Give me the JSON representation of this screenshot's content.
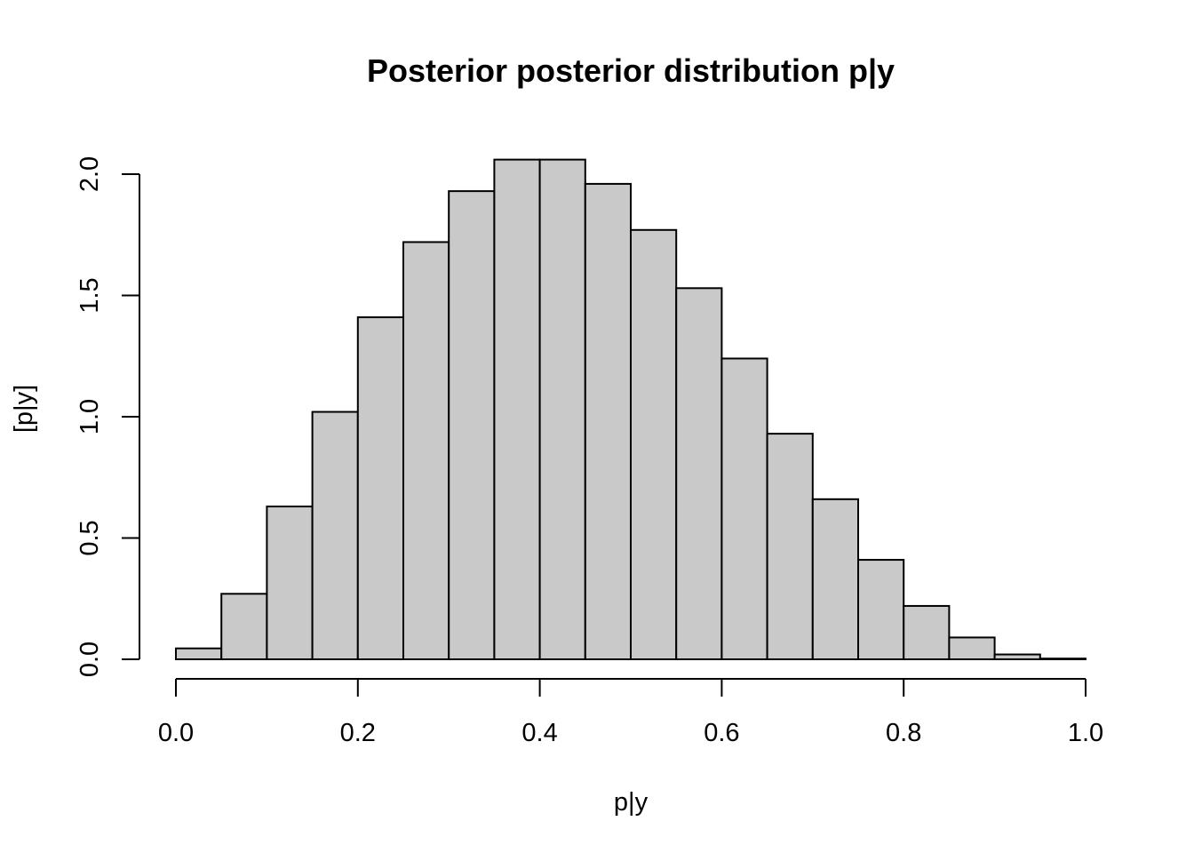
{
  "chart_data": {
    "type": "bar",
    "title": "Posterior posterior distribution p|y",
    "xlabel": "p|y",
    "ylabel": "[p|y]",
    "xlim": [
      0,
      1
    ],
    "ylim": [
      0,
      2.0
    ],
    "x_ticks": [
      "0.0",
      "0.2",
      "0.4",
      "0.6",
      "0.8",
      "1.0"
    ],
    "y_ticks": [
      "0.0",
      "0.5",
      "1.0",
      "1.5",
      "2.0"
    ],
    "grid": false,
    "bar_color": "#c9c9c9",
    "bins": [
      {
        "x0": 0.0,
        "x1": 0.05,
        "density": 0.045
      },
      {
        "x0": 0.05,
        "x1": 0.1,
        "density": 0.27
      },
      {
        "x0": 0.1,
        "x1": 0.15,
        "density": 0.63
      },
      {
        "x0": 0.15,
        "x1": 0.2,
        "density": 1.02
      },
      {
        "x0": 0.2,
        "x1": 0.25,
        "density": 1.41
      },
      {
        "x0": 0.25,
        "x1": 0.3,
        "density": 1.72
      },
      {
        "x0": 0.3,
        "x1": 0.35,
        "density": 1.93
      },
      {
        "x0": 0.35,
        "x1": 0.4,
        "density": 2.06
      },
      {
        "x0": 0.4,
        "x1": 0.45,
        "density": 2.06
      },
      {
        "x0": 0.45,
        "x1": 0.5,
        "density": 1.96
      },
      {
        "x0": 0.5,
        "x1": 0.55,
        "density": 1.77
      },
      {
        "x0": 0.55,
        "x1": 0.6,
        "density": 1.53
      },
      {
        "x0": 0.6,
        "x1": 0.65,
        "density": 1.24
      },
      {
        "x0": 0.65,
        "x1": 0.7,
        "density": 0.93
      },
      {
        "x0": 0.7,
        "x1": 0.75,
        "density": 0.66
      },
      {
        "x0": 0.75,
        "x1": 0.8,
        "density": 0.41
      },
      {
        "x0": 0.8,
        "x1": 0.85,
        "density": 0.22
      },
      {
        "x0": 0.85,
        "x1": 0.9,
        "density": 0.09
      },
      {
        "x0": 0.9,
        "x1": 0.95,
        "density": 0.02
      },
      {
        "x0": 0.95,
        "x1": 1.0,
        "density": 0.003
      }
    ]
  }
}
